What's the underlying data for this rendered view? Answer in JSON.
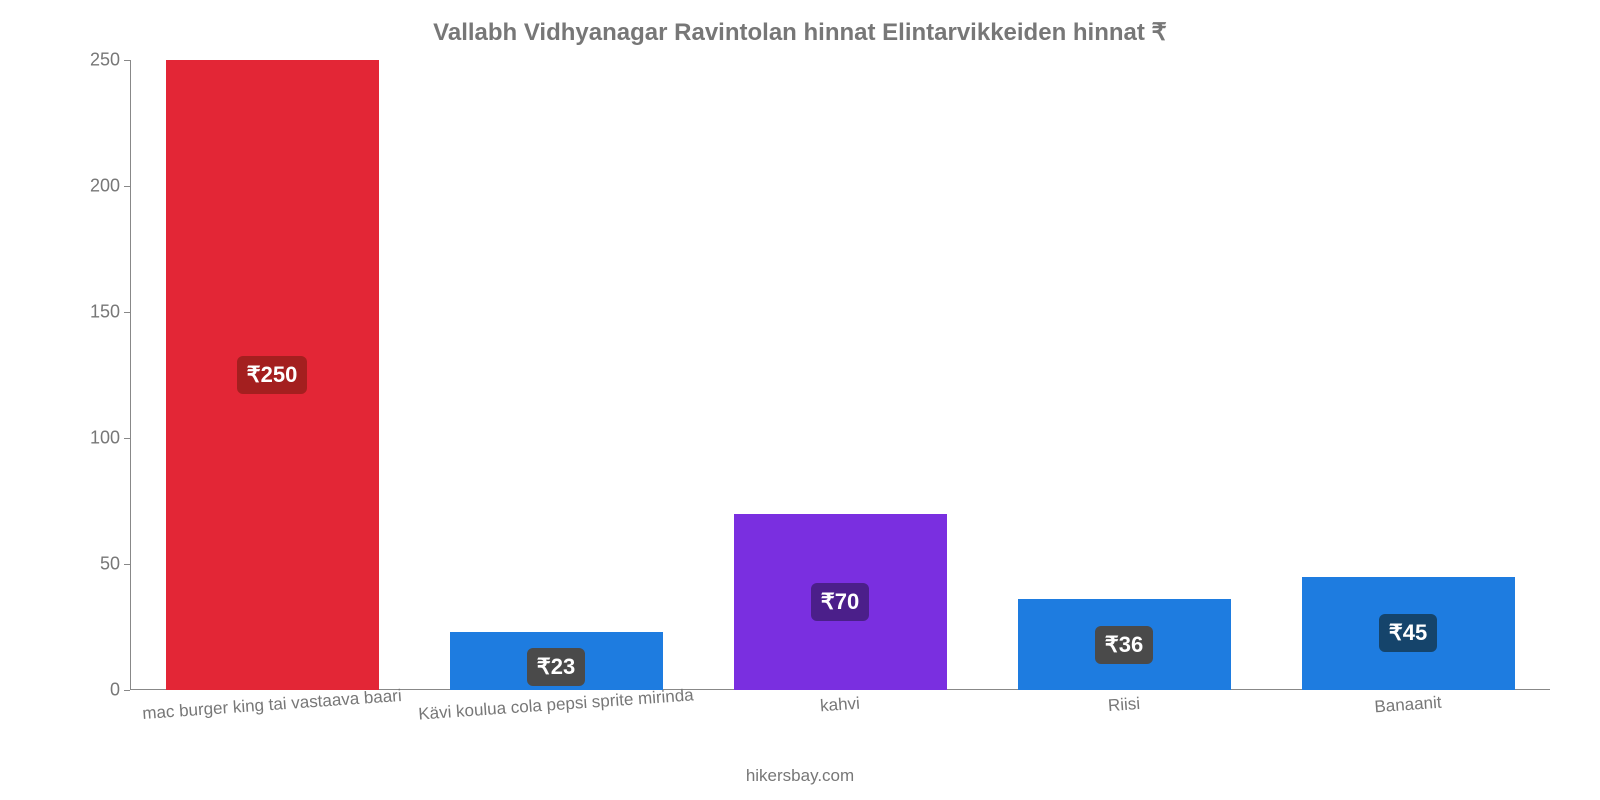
{
  "chart": {
    "type": "bar",
    "title": "Vallabh Vidhyanagar Ravintolan hinnat Elintarvikkeiden hinnat ₹",
    "title_fontsize": 24,
    "title_color": "#777777",
    "background_color": "#ffffff",
    "axis_color": "#888888",
    "tick_label_color": "#777777",
    "tick_fontsize": 18,
    "xlabel_fontsize": 17,
    "xlabel_rotation_deg": -4,
    "ylim": [
      0,
      250
    ],
    "ytick_step": 50,
    "yticks": [
      {
        "value": 0,
        "label": "0"
      },
      {
        "value": 50,
        "label": "50"
      },
      {
        "value": 100,
        "label": "100"
      },
      {
        "value": 150,
        "label": "150"
      },
      {
        "value": 200,
        "label": "200"
      },
      {
        "value": 250,
        "label": "250"
      }
    ],
    "bar_width_ratio": 0.75,
    "value_label_fontsize": 22,
    "value_label_text_color": "#ffffff",
    "value_label_radius": 6,
    "bars": [
      {
        "category": "mac burger king tai vastaava baari",
        "value": 250,
        "value_label": "₹250",
        "bar_color": "#e32636",
        "label_bg": "#a41f1f"
      },
      {
        "category": "Kävi koulua cola pepsi sprite mirinda",
        "value": 23,
        "value_label": "₹23",
        "bar_color": "#1e7ce0",
        "label_bg": "#4a4a4a"
      },
      {
        "category": "kahvi",
        "value": 70,
        "value_label": "₹70",
        "bar_color": "#7a2fe0",
        "label_bg": "#4b1f8a"
      },
      {
        "category": "Riisi",
        "value": 36,
        "value_label": "₹36",
        "bar_color": "#1e7ce0",
        "label_bg": "#4a4a4a"
      },
      {
        "category": "Banaanit",
        "value": 45,
        "value_label": "₹45",
        "bar_color": "#1e7ce0",
        "label_bg": "#15446b"
      }
    ],
    "source": "hikersbay.com"
  }
}
